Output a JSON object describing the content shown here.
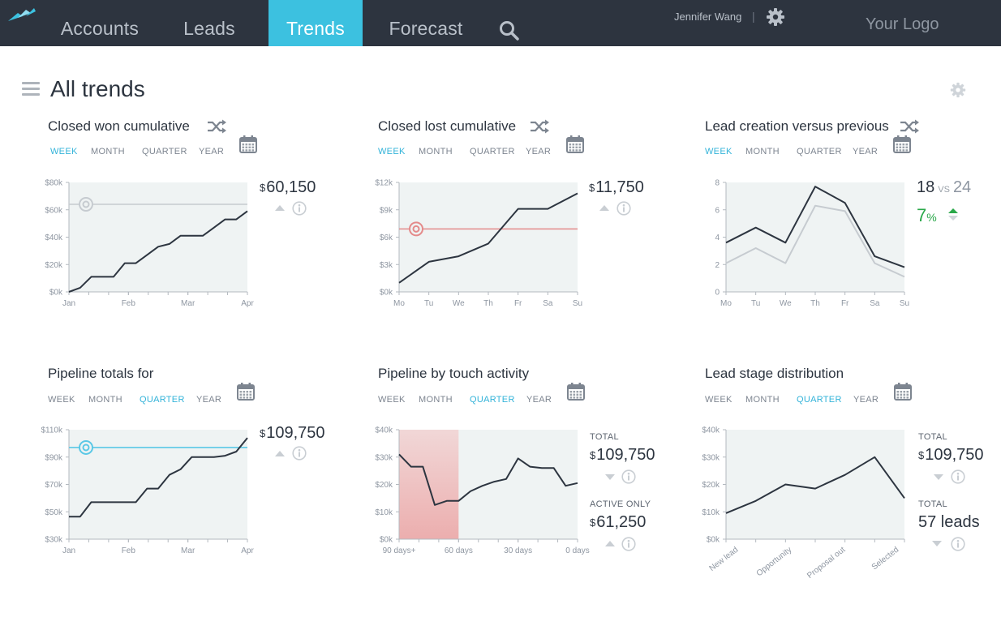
{
  "nav": {
    "tabs": [
      "Accounts",
      "Leads",
      "Trends",
      "Forecast"
    ],
    "active_tab": "Trends",
    "user_name": "Jennifer Wang",
    "separator": "|",
    "logo_text": "Your Logo",
    "accent_color": "#3cc1e0"
  },
  "page": {
    "title": "All trends"
  },
  "period_options": [
    "WEEK",
    "MONTH",
    "QUARTER",
    "YEAR"
  ],
  "icons": [
    "logo-mark",
    "search-icon",
    "gear-icon",
    "menu-icon",
    "shuffle-icon",
    "calendar-icon",
    "info-icon",
    "target-icon",
    "caret-up-icon",
    "caret-down-icon"
  ],
  "cards": [
    {
      "title": "Closed won cumulative",
      "active_period": "WEEK",
      "value_currency": "$",
      "value": "60,150"
    },
    {
      "title": "Closed lost cumulative",
      "active_period": "WEEK",
      "value_currency": "$",
      "value": "11,750"
    },
    {
      "title": "Lead creation versus previous",
      "active_period": "WEEK",
      "current": "18",
      "vs_label": "VS",
      "previous": "24",
      "change_value": "7",
      "change_unit": "%"
    },
    {
      "title": "Pipeline totals for",
      "active_period": "QUARTER",
      "value_currency": "$",
      "value": "109,750"
    },
    {
      "title": "Pipeline by touch activity",
      "active_period": "QUARTER",
      "stat1_label": "TOTAL",
      "stat1_currency": "$",
      "stat1_value": "109,750",
      "stat2_label": "ACTIVE ONLY",
      "stat2_currency": "$",
      "stat2_value": "61,250"
    },
    {
      "title": "Lead stage distribution",
      "active_period": "QUARTER",
      "stat1_label": "TOTAL",
      "stat1_currency": "$",
      "stat1_value": "109,750",
      "stat2_label": "TOTAL",
      "stat2_value": "57 leads"
    }
  ],
  "chart_data": [
    {
      "type": "line",
      "x_ticks": [
        "Jan",
        "Feb",
        "Mar",
        "Apr"
      ],
      "y_ticks": [
        "$0k",
        "$20k",
        "$40k",
        "$60k",
        "$80k"
      ],
      "ylim": [
        0,
        80000
      ],
      "target": 64000,
      "values": [
        0,
        3000,
        11000,
        11000,
        11000,
        21000,
        21000,
        27000,
        33000,
        35000,
        41000,
        41000,
        41000,
        47000,
        53000,
        53000,
        59000
      ],
      "grid": false
    },
    {
      "type": "line",
      "x_ticks": [
        "Mo",
        "Tu",
        "We",
        "Th",
        "Fr",
        "Sa",
        "Su"
      ],
      "y_ticks": [
        "$0k",
        "$3k",
        "$6k",
        "$9k",
        "$12k"
      ],
      "ylim": [
        0,
        12000
      ],
      "target": 6900,
      "values": [
        1000,
        3300,
        3900,
        5300,
        9100,
        9100,
        10800
      ],
      "grid": false
    },
    {
      "type": "line",
      "x_ticks": [
        "Mo",
        "Tu",
        "We",
        "Th",
        "Fr",
        "Sa",
        "Su"
      ],
      "y_ticks": [
        "0",
        "2",
        "4",
        "6",
        "8"
      ],
      "ylim": [
        0,
        8
      ],
      "series": [
        {
          "name": "",
          "values": [
            3.6,
            4.7,
            3.6,
            7.7,
            6.5,
            2.6,
            1.8
          ]
        },
        {
          "name": "",
          "values": [
            2.1,
            3.2,
            2.1,
            6.3,
            5.9,
            2.1,
            1.1
          ]
        }
      ],
      "grid": false
    },
    {
      "type": "line",
      "x_ticks": [
        "Jan",
        "Feb",
        "Mar",
        "Apr"
      ],
      "y_ticks": [
        "$30k",
        "$50k",
        "$70k",
        "$90k",
        "$110k"
      ],
      "ylim": [
        30000,
        110000
      ],
      "target": 97000,
      "values": [
        46500,
        46500,
        57000,
        57000,
        57000,
        57000,
        57000,
        67000,
        67000,
        77000,
        81000,
        90000,
        90000,
        90000,
        91000,
        94000,
        104000
      ],
      "grid": false
    },
    {
      "type": "line",
      "x_ticks": [
        "90 days+",
        "60 days",
        "30 days",
        "0 days"
      ],
      "y_ticks": [
        "$0k",
        "$10k",
        "$20k",
        "$30k",
        "$40k"
      ],
      "ylim": [
        0,
        40000
      ],
      "highlight_range": [
        "90 days+",
        "60 days"
      ],
      "values": [
        31000,
        26500,
        26500,
        12500,
        14000,
        14000,
        17500,
        19500,
        21000,
        22000,
        29500,
        26500,
        26000,
        26000,
        19500,
        20500
      ],
      "grid": false
    },
    {
      "type": "line",
      "x_ticks": [
        "New lead",
        "Opportunity",
        "Proposal out",
        "Selected"
      ],
      "y_ticks": [
        "$0k",
        "$10k",
        "$20k",
        "$30k",
        "$40k"
      ],
      "ylim": [
        0,
        40000
      ],
      "values": [
        9500,
        14000,
        20000,
        18500,
        23500,
        30000,
        15000
      ],
      "grid": false
    }
  ]
}
